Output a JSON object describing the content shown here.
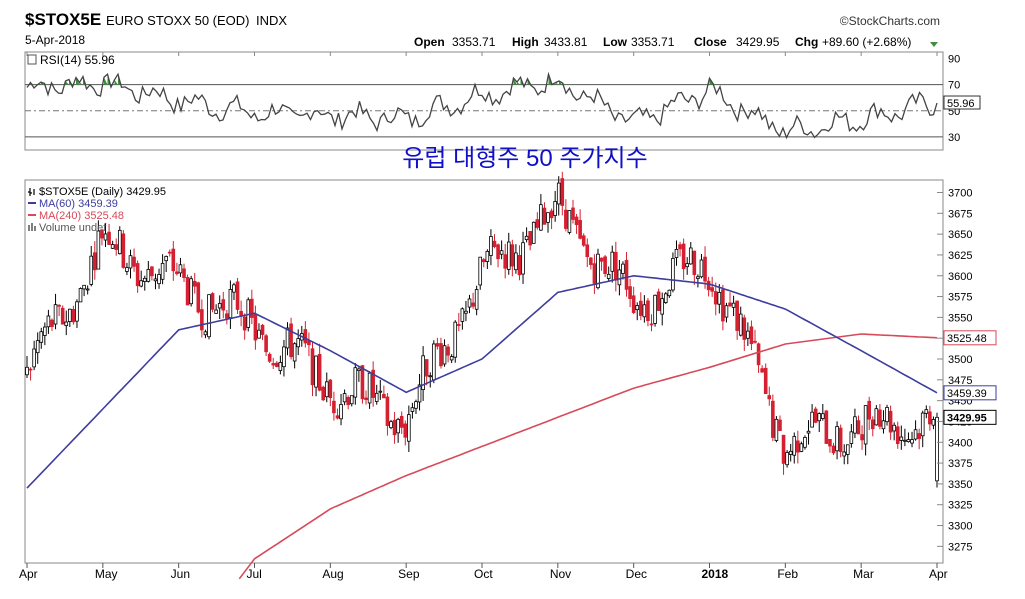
{
  "header": {
    "symbol": "$STOX5E",
    "name": "EURO STOXX 50 (EOD)",
    "exchange": "INDX",
    "date": "5-Apr-2018",
    "brand": "©StockCharts.com",
    "ohlc": {
      "open_label": "Open",
      "open": "3353.71",
      "high_label": "High",
      "high": "3433.81",
      "low_label": "Low",
      "low": "3353.71",
      "close_label": "Close",
      "close": "3429.95",
      "chg_label": "Chg",
      "chg": "+89.60 (+2.68%)"
    }
  },
  "rsi_panel": {
    "label": "RSI(14) 55.96",
    "current_value": "55.96",
    "y_ticks": [
      "90",
      "70",
      "50",
      "30"
    ],
    "overlay_text": "유럽 대형주 50 주가지수"
  },
  "price_panel": {
    "legend": [
      {
        "text": "$STOX5E (Daily) 3429.95",
        "color": "#000000",
        "marker": "bar"
      },
      {
        "text": "MA(60) 3459.39",
        "color": "#3d3d9e",
        "marker": "line"
      },
      {
        "text": "MA(240) 3525.48",
        "color": "#d64a5a",
        "marker": "line"
      },
      {
        "text": "Volume undef",
        "color": "#555555",
        "marker": "vol"
      }
    ],
    "y_ticks": [
      "3700",
      "3675",
      "3650",
      "3625",
      "3600",
      "3575",
      "3550",
      "3525",
      "3500",
      "3475",
      "3450",
      "3425",
      "3400",
      "3375",
      "3350",
      "3325",
      "3300",
      "3275"
    ],
    "tags": [
      {
        "value": "3525.48",
        "color": "#d64a5a"
      },
      {
        "value": "3459.39",
        "color": "#3d3d9e"
      },
      {
        "value": "3429.95",
        "color": "#000000"
      }
    ],
    "x_ticks": [
      "Apr",
      "May",
      "Jun",
      "Jul",
      "Aug",
      "Sep",
      "Oct",
      "Nov",
      "Dec",
      "2018",
      "Feb",
      "Mar",
      "Apr"
    ]
  },
  "colors": {
    "up": "#000000",
    "down": "#d42030",
    "ma60": "#3d3d9e",
    "ma240": "#d64a5a",
    "rsi": "#444444",
    "rsi_fill": "#3e8e3e",
    "title_text": "#1010c8"
  },
  "chart_data": [
    {
      "type": "line",
      "title": "RSI(14) 55.96",
      "x": [
        "Apr 2017",
        "May",
        "Jun",
        "Jul",
        "Aug",
        "Sep",
        "Oct",
        "Nov",
        "Dec",
        "2018",
        "Feb",
        "Mar",
        "Apr 2018"
      ],
      "series": [
        {
          "name": "RSI(14)",
          "values": [
            68,
            72,
            58,
            48,
            47,
            44,
            63,
            73,
            40,
            66,
            34,
            44,
            56
          ]
        }
      ],
      "ylim": [
        20,
        95
      ]
    },
    {
      "type": "line",
      "title": "$STOX5E (Daily) 3429.95",
      "x": [
        "Apr 2017",
        "May",
        "Jun",
        "Jul",
        "Aug",
        "Sep",
        "Oct",
        "Nov",
        "Dec",
        "2018",
        "Feb",
        "Mar",
        "Apr 2018"
      ],
      "series": [
        {
          "name": "$STOX5E (Daily)",
          "values": [
            3480,
            3640,
            3590,
            3540,
            3470,
            3430,
            3600,
            3680,
            3570,
            3620,
            3400,
            3420,
            3429.95
          ]
        },
        {
          "name": "MA(60)",
          "values": [
            3345,
            3440,
            3535,
            3555,
            3510,
            3460,
            3500,
            3580,
            3600,
            3590,
            3560,
            3510,
            3459.39
          ]
        },
        {
          "name": "MA(240)",
          "values": [
            null,
            null,
            null,
            3260,
            3320,
            3360,
            3395,
            3430,
            3465,
            3490,
            3518,
            3530,
            3525.48
          ]
        }
      ],
      "ylim": [
        3255,
        3715
      ]
    }
  ]
}
